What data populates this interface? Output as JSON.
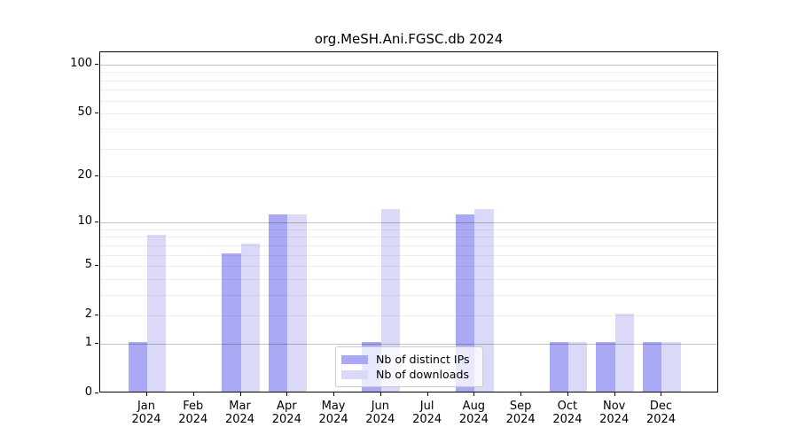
{
  "title": "org.MeSH.Ani.FGSC.db 2024",
  "chart_data": {
    "type": "bar",
    "title": "org.MeSH.Ani.FGSC.db 2024",
    "xlabel": "",
    "ylabel": "",
    "categories": [
      "Jan",
      "Feb",
      "Mar",
      "Apr",
      "May",
      "Jun",
      "Jul",
      "Aug",
      "Sep",
      "Oct",
      "Nov",
      "Dec"
    ],
    "category_year": "2024",
    "series": [
      {
        "name": "Nb of distinct IPs",
        "color": "#a9a9f6",
        "values": [
          1,
          0,
          6,
          11,
          0,
          1,
          0,
          11,
          0,
          1,
          1,
          1
        ]
      },
      {
        "name": "Nb of downloads",
        "color": "#dadaf8",
        "values": [
          8,
          0,
          7,
          11,
          0,
          12,
          0,
          12,
          0,
          1,
          2,
          1
        ]
      }
    ],
    "yscale": "log1p",
    "ylim": [
      0,
      120
    ],
    "yticks": [
      0,
      1,
      2,
      5,
      10,
      20,
      50,
      100
    ],
    "major_gridlines": [
      1,
      10,
      100
    ],
    "minor_gridlines": [
      2,
      3,
      4,
      5,
      6,
      7,
      8,
      9,
      20,
      30,
      40,
      50,
      60,
      70,
      80,
      90
    ],
    "grid": true,
    "legend_position": "lower center (inside plot)"
  }
}
